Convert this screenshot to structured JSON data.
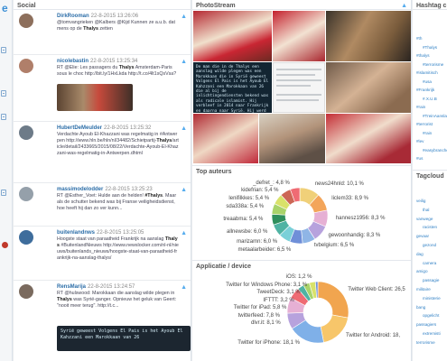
{
  "brand_letter": "e",
  "social": {
    "title": "Social",
    "items": [
      {
        "user": "DirkRooman",
        "date": "22-8-2015 13:26:06",
        "text": "@tomvangrieken @Kalbers @Kijd Kunnen ze a.u.b. dat mens op de Thalys zetten"
      },
      {
        "user": "nicolebastin",
        "date": "22-8-2015 13:25:34",
        "text": "RT @Elie: Les passagers du Thalys Amsterdam-Paris sous le choc http://bit.ly/1HxLkda http://t.co/4lt1sQsVsa?"
      },
      {
        "user": "HubertDeMeulder",
        "date": "22-8-2015 13:25:32",
        "text": "Verdachte Ayoub El-Khazzani was regelmatig in #Antwerpen http://www.hln.be/hln/nl/34482/Schietpartij-Thalys/article/detail/2433665/2015/08/22/Verdachte-Ayoub-El-Khazzani-was-regelmatig-in-Antwerpen.dhtml"
      },
      {
        "user": "massimodelodder",
        "date": "22-8-2015 13:25:23",
        "text": "RT @Esther_Voet: Hulde aan de helden! #Thalys. Maar als de schutter bekend was bij Franse veiligheidsdienst, hoe heeft hij dan zo ver kunn..."
      },
      {
        "user": "buitenlandnws",
        "date": "22-8-2015 13:25:05",
        "text": "Hoogste staat van paraatheid Frankrijk na aanslag Thalys #BuitenlandNieuws http://www.newslocker.com/nl-nl/nieuws/buitenlands_nieuws/hoogste-staat-van-paraatheid-frankrijk-na-aanslag-thalys/"
      },
      {
        "user": "RensMarija",
        "date": "22-8-2015 13:24:57",
        "text": "RT @hulswood: Marokkaan die aanslag wilde plegen in Thalys was Syrië-ganger. Opnieuw het geluk van Geert: \"nooit meer terug\". http://t.c..."
      }
    ],
    "image_caption_1": "Syrië geweest Volgens El Pais is het Ayoub El Kahzzani een Marokkaan van 26"
  },
  "photostream": {
    "title": "PhotoStream",
    "caption_text": "De man die in de Thalys een aanslag wilde plegen was een Marokkaan die in Syrië geweest Volgens El Pais is het Ayoub El Kahzzani een Marokkaan van 26 die al bij de inlichtingendiensten bekend was als radicale islamist. Hij verbleef in 2014 naar Frankrijk en daarna naar Syrië. Hij werd in 2015 in België gevolgd door de inlichtingendiensten"
  },
  "top_auteurs": {
    "title": "Top auteurs",
    "slices": [
      {
        "name": "news24hnld",
        "value": 10.1,
        "color": "#f0d079"
      },
      {
        "name": "liclem33",
        "value": 8.9,
        "color": "#f3a55a"
      },
      {
        "name": "hannesz1956",
        "value": 8.3,
        "color": "#e6b0d4"
      },
      {
        "name": "gewoonhandig",
        "value": 8.3,
        "color": "#b7a2dd"
      },
      {
        "name": "tvbelgium",
        "value": 6.5,
        "color": "#8fb5e6"
      },
      {
        "name": "metaalarbeider",
        "value": 6.5,
        "color": "#6f8fd8"
      },
      {
        "name": "marizamn",
        "value": 6.0,
        "color": "#7ad0d8"
      },
      {
        "name": "allnewsbe",
        "value": 6.0,
        "color": "#4fb3a3"
      },
      {
        "name": "treaabma",
        "value": 5.4,
        "color": "#2f8f5c"
      },
      {
        "name": "sda338a",
        "value": 5.4,
        "color": "#a9d36a"
      },
      {
        "name": "lenifilkkes",
        "value": 5.4,
        "color": "#d9e26a"
      },
      {
        "name": "kidefrian",
        "value": 5.4,
        "color": "#cc6655"
      },
      {
        "name": "_defret_",
        "value": 4.8,
        "color": "#ef6b73"
      }
    ],
    "labels": {
      "news24hnld": "news24hnld: 10,1 %",
      "liclem33": "liclem33: 8,9 %",
      "hannesz1956": "hannesz1956: 8,3 %",
      "gewoonhandig": "gewoonhandig: 8,3 %",
      "tvbelgium": "tvbelgium: 6,5 %",
      "metaalarbeider": "metaalarbeider: 6,5 %",
      "marizamn": "marizamn: 6,0 %",
      "allnewsbe": "allnewsbe: 6,0 %",
      "treaabma": "treaabma: 5,4 %",
      "sda338a": "sda338a: 5,4 %",
      "lenifilkkes": "lenifilkkes: 5,4 %",
      "kidefrian": "kidefrian: 5,4 %",
      "_defret_": "_defret_: 4,8 %"
    }
  },
  "applicatie": {
    "title": "Applicatie / device",
    "slices": [
      {
        "name": "Twitter Web Client",
        "value": 26.5,
        "color": "#f1a54f"
      },
      {
        "name": "Twitter for Android",
        "value": 18.1,
        "color": "#f7c66a"
      },
      {
        "name": "Twitter for iPhone",
        "value": 18.1,
        "color": "#7fb0e8"
      },
      {
        "name": "dlvr.it",
        "value": 8.1,
        "color": "#b7a2dd"
      },
      {
        "name": "twitterfeed",
        "value": 7.8,
        "color": "#e6b0d4"
      },
      {
        "name": "Twitter for iPad",
        "value": 5.8,
        "color": "#ef6b73"
      },
      {
        "name": "IFTTT",
        "value": 3.2,
        "color": "#4fb3a3"
      },
      {
        "name": "TweetDeck",
        "value": 3.1,
        "color": "#a9d36a"
      },
      {
        "name": "Twitter for Windows Phone",
        "value": 3.1,
        "color": "#d9e26a"
      },
      {
        "name": "iOS",
        "value": 1.2,
        "color": "#6f8fd8"
      }
    ],
    "labels": {
      "iOS": "iOS: 1,2 %",
      "Twitter for Windows Phone": "Twitter for Windows Phone: 3,1 %",
      "TweetDeck": "TweetDeck: 3,1 %",
      "IFTTT": "IFTTT: 3,2 %",
      "Twitter for iPad": "Twitter for iPad: 5,8 %",
      "twitterfeed": "twitterfeed: 7,8 %",
      "dlvr.it": "dlvr.it: 8,1 %",
      "Twitter for iPhone": "Twitter for iPhone: 18,1 %",
      "Twitter Web Client": "Twitter Web Client: 26,5",
      "Twitter for Android": "Twitter for Android: 18,"
    }
  },
  "hashtag_cloud": {
    "title": "Hashtag clou",
    "tags": [
      "#th",
      "#Thalys",
      "#thalys",
      "#terrorisme",
      "#islamitisch",
      "#usa",
      "#Frankrijk",
      "#.X.U.B",
      "#rain",
      "#TreinAanslag",
      "#terrorist",
      "#rain",
      "#lev",
      "#easybranche",
      "#us"
    ]
  },
  "tagcloud": {
    "title": "Tagcloud",
    "tags": [
      "veilig",
      "thal",
      "vanwege",
      "racisten",
      "gevaar",
      "gezond",
      "dag",
      "camera",
      "amigo",
      "passagie",
      "militaire",
      "ministerie",
      "bang",
      "opgelicht",
      "passagiers",
      "extremisti",
      "terrorisme"
    ]
  }
}
